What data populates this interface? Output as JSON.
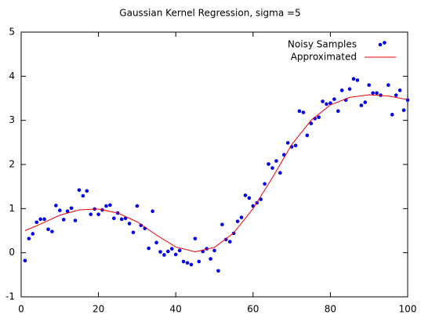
{
  "chart_data": {
    "type": "scatter",
    "title": "Gaussian Kernel Regression, sigma =5",
    "xlim": [
      0,
      100
    ],
    "ylim": [
      -1,
      5
    ],
    "xticks": [
      0,
      20,
      40,
      60,
      80,
      100
    ],
    "yticks": [
      -1,
      0,
      1,
      2,
      3,
      4,
      5
    ],
    "legend": "top-right",
    "series": [
      {
        "name": "Noisy Samples",
        "color": "#0000ee",
        "mode": "markers",
        "x": [
          1,
          2,
          3,
          4,
          5,
          6,
          7,
          8,
          9,
          10,
          11,
          12,
          13,
          14,
          15,
          16,
          17,
          18,
          19,
          20,
          21,
          22,
          23,
          24,
          25,
          26,
          27,
          28,
          29,
          30,
          31,
          32,
          33,
          34,
          35,
          36,
          37,
          38,
          39,
          40,
          41,
          42,
          43,
          44,
          45,
          46,
          47,
          48,
          49,
          50,
          51,
          52,
          53,
          54,
          55,
          56,
          57,
          58,
          59,
          60,
          61,
          62,
          63,
          64,
          65,
          66,
          67,
          68,
          69,
          70,
          71,
          72,
          73,
          74,
          75,
          76,
          77,
          78,
          79,
          80,
          81,
          82,
          83,
          84,
          85,
          86,
          87,
          88,
          89,
          90,
          91,
          92,
          93,
          94,
          95,
          96,
          97,
          98,
          99,
          100
        ],
        "values": [
          -0.18,
          0.32,
          0.43,
          0.69,
          0.76,
          0.76,
          0.53,
          0.48,
          1.07,
          0.96,
          0.75,
          0.94,
          1.01,
          0.73,
          1.42,
          1.29,
          1.4,
          0.87,
          0.99,
          0.87,
          0.97,
          1.06,
          1.08,
          0.78,
          0.9,
          0.76,
          0.78,
          0.66,
          0.46,
          1.06,
          0.62,
          0.55,
          0.1,
          0.94,
          0.23,
          0.02,
          -0.05,
          0.03,
          0.09,
          -0.04,
          0.05,
          -0.2,
          -0.23,
          -0.27,
          0.32,
          -0.2,
          0.03,
          0.09,
          -0.14,
          0.05,
          -0.41,
          0.64,
          0.3,
          0.25,
          0.44,
          0.71,
          0.8,
          1.3,
          1.24,
          1.06,
          1.13,
          1.21,
          1.56,
          2.01,
          1.92,
          2.08,
          1.81,
          2.22,
          2.49,
          2.4,
          2.43,
          3.21,
          3.18,
          2.66,
          2.93,
          3.04,
          3.07,
          3.43,
          3.37,
          3.39,
          3.48,
          3.21,
          3.68,
          3.46,
          3.71,
          3.94,
          3.91,
          3.34,
          3.41,
          3.8,
          3.62,
          3.62,
          3.57,
          4.76,
          3.8,
          3.13,
          3.57,
          3.68,
          3.23,
          3.46
        ]
      },
      {
        "name": "Approximated",
        "color": "#ee0000",
        "mode": "lines",
        "x": [
          1,
          5,
          10,
          15,
          20,
          25,
          30,
          35,
          40,
          45,
          50,
          55,
          60,
          65,
          70,
          75,
          80,
          85,
          90,
          95,
          100
        ],
        "values": [
          0.5,
          0.65,
          0.85,
          0.97,
          0.99,
          0.9,
          0.7,
          0.4,
          0.13,
          0.02,
          0.12,
          0.45,
          1.0,
          1.7,
          2.45,
          3.0,
          3.35,
          3.52,
          3.58,
          3.55,
          3.47
        ]
      }
    ]
  }
}
